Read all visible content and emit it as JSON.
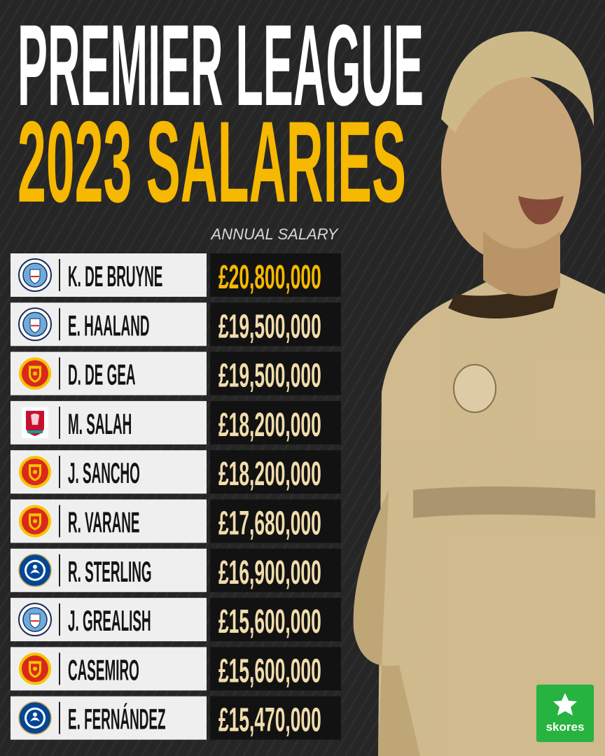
{
  "header": {
    "title_line1": "PREMIER LEAGUE",
    "title_line2": "2023 SALARIES",
    "column_label": "ANNUAL SALARY"
  },
  "table": {
    "rows": [
      [
        "K. DE BRUYNE",
        "£20,800,000"
      ],
      [
        "E. HAALAND",
        "£19,500,000"
      ],
      [
        "D. DE GEA",
        "£19,500,000"
      ],
      [
        "M. SALAH",
        "£18,200,000"
      ],
      [
        "J. SANCHO",
        "£18,200,000"
      ],
      [
        "R. VARANE",
        "£17,680,000"
      ],
      [
        "R. STERLING",
        "£16,900,000"
      ],
      [
        "J. GREALISH",
        "£15,600,000"
      ],
      [
        "CASEMIRO",
        "£15,600,000"
      ],
      [
        "E. FERNÁNDEZ",
        "£15,470,000"
      ]
    ]
  },
  "brand": "skores"
}
